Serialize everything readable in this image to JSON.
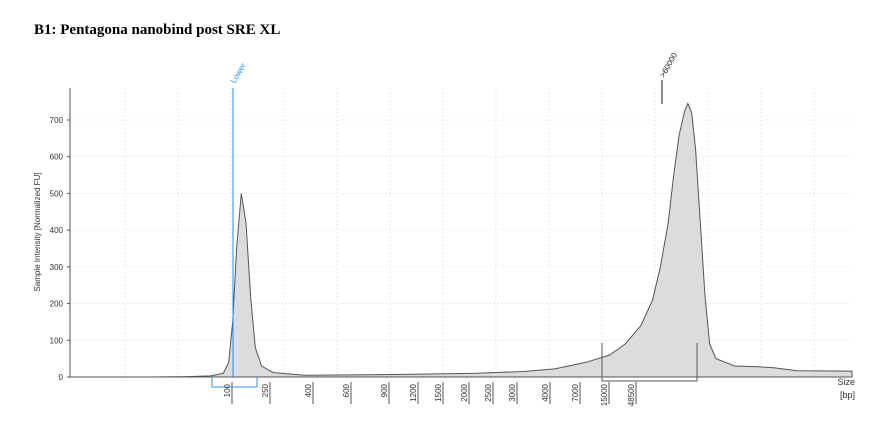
{
  "title": "B1: Pentagona nanobind post SRE XL",
  "chart_data": {
    "type": "area",
    "title": "B1: Pentagona nanobind post SRE XL",
    "ylabel": "Sample Intensity [Normalized FU]",
    "xlabel": "Size",
    "xunit": "[bp]",
    "ylim": [
      0,
      780
    ],
    "yticks": [
      0,
      100,
      200,
      300,
      400,
      500,
      600,
      700
    ],
    "grid": true,
    "xtick_labels": [
      "100",
      "250",
      "400",
      "600",
      "900",
      "1200",
      "1500",
      "2000",
      "2500",
      "3000",
      "4000",
      "7000",
      "15000",
      "48500"
    ],
    "markers": [
      {
        "label": "Lower",
        "color": "#1e90ff",
        "at": "100"
      },
      {
        "label": ">60000",
        "color": "#222222",
        "at": ">60000"
      }
    ],
    "series": [
      {
        "points": [
          {
            "pos": 0,
            "y": 0
          },
          {
            "pos": 0.1,
            "y": 0
          },
          {
            "pos": 0.15,
            "y": 1
          },
          {
            "pos": 0.18,
            "y": 3
          },
          {
            "pos": 0.196,
            "y": 10
          },
          {
            "pos": 0.203,
            "y": 40
          },
          {
            "pos": 0.208,
            "y": 150
          },
          {
            "pos": 0.213,
            "y": 350
          },
          {
            "pos": 0.219,
            "y": 500
          },
          {
            "pos": 0.225,
            "y": 420
          },
          {
            "pos": 0.231,
            "y": 220
          },
          {
            "pos": 0.237,
            "y": 80
          },
          {
            "pos": 0.245,
            "y": 30
          },
          {
            "pos": 0.26,
            "y": 12
          },
          {
            "pos": 0.3,
            "y": 5
          },
          {
            "pos": 0.38,
            "y": 6
          },
          {
            "pos": 0.45,
            "y": 8
          },
          {
            "pos": 0.52,
            "y": 10
          },
          {
            "pos": 0.58,
            "y": 15
          },
          {
            "pos": 0.62,
            "y": 22
          },
          {
            "pos": 0.66,
            "y": 40
          },
          {
            "pos": 0.69,
            "y": 60
          },
          {
            "pos": 0.71,
            "y": 90
          },
          {
            "pos": 0.73,
            "y": 140
          },
          {
            "pos": 0.745,
            "y": 210
          },
          {
            "pos": 0.755,
            "y": 300
          },
          {
            "pos": 0.765,
            "y": 420
          },
          {
            "pos": 0.772,
            "y": 550
          },
          {
            "pos": 0.779,
            "y": 660
          },
          {
            "pos": 0.786,
            "y": 725
          },
          {
            "pos": 0.79,
            "y": 745
          },
          {
            "pos": 0.795,
            "y": 720
          },
          {
            "pos": 0.8,
            "y": 620
          },
          {
            "pos": 0.806,
            "y": 420
          },
          {
            "pos": 0.812,
            "y": 220
          },
          {
            "pos": 0.818,
            "y": 90
          },
          {
            "pos": 0.826,
            "y": 50
          },
          {
            "pos": 0.85,
            "y": 30
          },
          {
            "pos": 0.88,
            "y": 28
          },
          {
            "pos": 0.9,
            "y": 25
          },
          {
            "pos": 0.93,
            "y": 17
          },
          {
            "pos": 1,
            "y": 16
          }
        ]
      }
    ]
  }
}
